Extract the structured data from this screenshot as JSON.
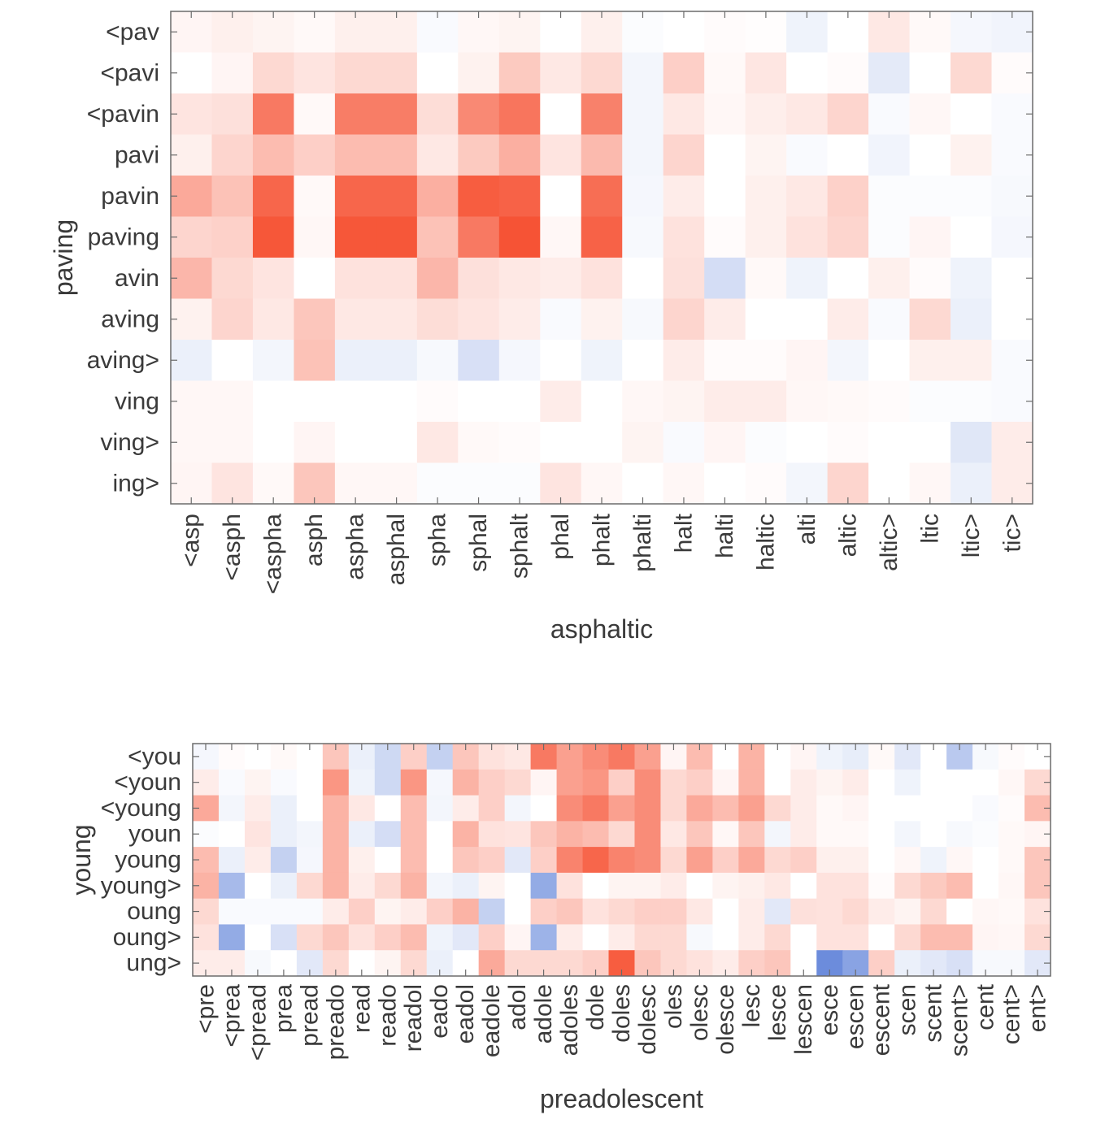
{
  "chart_data": [
    {
      "type": "heatmap",
      "xlabel": "asphaltic",
      "ylabel": "paving",
      "colormap": {
        "negative": "#3b66d0",
        "zero": "#ffffff",
        "positive": "#f5401e"
      },
      "value_range": [
        -1,
        1
      ],
      "x_categories": [
        "<asp",
        "<asph",
        "<aspha",
        "asph",
        "aspha",
        "asphal",
        "spha",
        "sphal",
        "sphalt",
        "phal",
        "phalt",
        "phalti",
        "halt",
        "halti",
        "haltic",
        "alti",
        "altic",
        "altic>",
        "ltic",
        "ltic>",
        "tic>"
      ],
      "y_categories": [
        "<pav",
        "<pavi",
        "<pavin",
        "pavi",
        "pavin",
        "paving",
        "avin",
        "aving",
        "aving>",
        "ving",
        "ving>",
        "ing>"
      ],
      "values": [
        [
          0.05,
          0.08,
          0.06,
          0.03,
          0.08,
          0.08,
          -0.03,
          0.04,
          0.06,
          0.0,
          0.08,
          -0.02,
          0.0,
          0.02,
          0.01,
          -0.08,
          0.0,
          0.12,
          0.03,
          -0.05,
          -0.07
        ],
        [
          0.0,
          0.05,
          0.2,
          0.14,
          0.2,
          0.2,
          0.0,
          0.07,
          0.28,
          0.12,
          0.2,
          -0.06,
          0.25,
          0.03,
          0.13,
          0.0,
          0.02,
          -0.14,
          0.0,
          0.2,
          0.02
        ],
        [
          0.14,
          0.16,
          0.7,
          0.03,
          0.68,
          0.68,
          0.18,
          0.62,
          0.72,
          0.0,
          0.66,
          -0.06,
          0.12,
          0.04,
          0.09,
          0.12,
          0.22,
          -0.03,
          0.04,
          0.0,
          -0.03
        ],
        [
          0.08,
          0.22,
          0.35,
          0.25,
          0.35,
          0.35,
          0.12,
          0.28,
          0.42,
          0.14,
          0.36,
          -0.06,
          0.22,
          0.0,
          0.06,
          -0.03,
          0.0,
          -0.07,
          0.0,
          0.07,
          -0.03
        ],
        [
          0.45,
          0.32,
          0.8,
          0.03,
          0.8,
          0.8,
          0.42,
          0.85,
          0.82,
          0.0,
          0.76,
          -0.05,
          0.1,
          0.0,
          0.08,
          0.12,
          0.24,
          -0.02,
          -0.02,
          -0.02,
          -0.04
        ],
        [
          0.22,
          0.24,
          0.88,
          0.04,
          0.88,
          0.88,
          0.32,
          0.7,
          0.9,
          0.04,
          0.82,
          -0.04,
          0.15,
          0.02,
          0.08,
          0.15,
          0.22,
          -0.02,
          0.05,
          0.0,
          -0.05
        ],
        [
          0.38,
          0.2,
          0.14,
          0.0,
          0.15,
          0.15,
          0.38,
          0.16,
          0.12,
          0.1,
          0.15,
          0.0,
          0.16,
          -0.22,
          0.03,
          -0.08,
          0.0,
          0.08,
          0.02,
          -0.08,
          0.0
        ],
        [
          0.07,
          0.22,
          0.12,
          0.3,
          0.12,
          0.12,
          0.18,
          0.14,
          0.1,
          -0.03,
          0.07,
          -0.04,
          0.22,
          0.1,
          0.0,
          0.0,
          0.1,
          -0.03,
          0.2,
          -0.1,
          0.0
        ],
        [
          -0.1,
          0.0,
          -0.06,
          0.32,
          -0.1,
          -0.1,
          -0.04,
          -0.2,
          -0.05,
          0.0,
          -0.08,
          0.0,
          0.1,
          0.02,
          0.02,
          0.05,
          -0.06,
          0.0,
          0.08,
          0.08,
          -0.03
        ],
        [
          0.04,
          0.04,
          0.0,
          0.0,
          0.0,
          0.0,
          0.02,
          0.0,
          0.0,
          0.1,
          0.0,
          0.04,
          0.06,
          0.1,
          0.1,
          0.04,
          0.03,
          0.02,
          -0.02,
          -0.02,
          -0.03
        ],
        [
          0.04,
          0.04,
          0.0,
          0.05,
          0.0,
          0.0,
          0.12,
          0.03,
          0.02,
          0.0,
          0.0,
          0.06,
          -0.03,
          0.05,
          -0.02,
          0.0,
          0.02,
          0.0,
          0.0,
          -0.16,
          0.1
        ],
        [
          0.05,
          0.14,
          0.03,
          0.3,
          0.04,
          0.04,
          -0.02,
          -0.02,
          -0.02,
          0.14,
          0.04,
          0.0,
          0.04,
          0.0,
          0.02,
          -0.06,
          0.22,
          0.0,
          0.04,
          -0.1,
          0.1
        ]
      ]
    },
    {
      "type": "heatmap",
      "xlabel": "preadolescent",
      "ylabel": "young",
      "colormap": {
        "negative": "#3b66d0",
        "zero": "#ffffff",
        "positive": "#f5401e"
      },
      "value_range": [
        -1,
        1
      ],
      "x_categories": [
        "<pre",
        "<prea",
        "<pread",
        "prea",
        "pread",
        "preado",
        "read",
        "reado",
        "readol",
        "eado",
        "eadol",
        "eadole",
        "adol",
        "adole",
        "adoles",
        "dole",
        "doles",
        "dolesc",
        "oles",
        "olesc",
        "olesce",
        "lesc",
        "lesce",
        "lescen",
        "esce",
        "escen",
        "escent",
        "scen",
        "scent",
        "scent>",
        "cent",
        "cent>",
        "ent>"
      ],
      "y_categories": [
        "<you",
        "<youn",
        "<young",
        "youn",
        "young",
        "young>",
        "oung",
        "oung>",
        "ung>"
      ],
      "values": [
        [
          -0.05,
          0.02,
          0.0,
          0.03,
          0.0,
          0.3,
          -0.1,
          -0.25,
          0.25,
          -0.3,
          0.3,
          0.15,
          0.12,
          0.7,
          0.5,
          0.6,
          0.7,
          0.5,
          0.05,
          0.35,
          0.0,
          0.4,
          0.0,
          0.05,
          -0.08,
          -0.12,
          0.03,
          -0.15,
          0.0,
          -0.35,
          -0.04,
          0.02,
          0.0
        ],
        [
          0.1,
          -0.03,
          0.06,
          -0.03,
          0.0,
          0.55,
          -0.08,
          -0.25,
          0.55,
          -0.05,
          0.4,
          0.25,
          0.2,
          0.05,
          0.5,
          0.55,
          0.25,
          0.6,
          0.2,
          0.25,
          0.05,
          0.4,
          0.0,
          0.1,
          0.06,
          0.1,
          0.0,
          -0.08,
          0.0,
          0.0,
          0.0,
          0.04,
          0.2
        ],
        [
          0.45,
          -0.06,
          0.1,
          -0.1,
          0.0,
          0.4,
          0.12,
          0.0,
          0.35,
          -0.06,
          0.1,
          0.25,
          -0.06,
          0.0,
          0.6,
          0.7,
          0.5,
          0.6,
          0.2,
          0.45,
          0.35,
          0.5,
          0.2,
          0.1,
          0.03,
          0.05,
          0.0,
          0.0,
          0.0,
          0.0,
          -0.03,
          0.02,
          0.35
        ],
        [
          -0.02,
          0.0,
          0.14,
          -0.1,
          -0.06,
          0.4,
          -0.1,
          -0.22,
          0.35,
          0.0,
          0.4,
          0.15,
          0.14,
          0.3,
          0.4,
          0.35,
          0.2,
          0.6,
          0.12,
          0.3,
          0.04,
          0.3,
          -0.06,
          0.1,
          0.03,
          0.03,
          0.0,
          -0.06,
          0.0,
          -0.04,
          -0.02,
          0.03,
          0.05
        ],
        [
          0.35,
          -0.1,
          0.1,
          -0.3,
          -0.05,
          0.4,
          0.08,
          0.0,
          0.35,
          0.0,
          0.3,
          0.25,
          -0.15,
          0.25,
          0.65,
          0.8,
          0.65,
          0.6,
          0.2,
          0.5,
          0.25,
          0.45,
          0.2,
          0.25,
          0.08,
          0.08,
          0.0,
          0.04,
          -0.08,
          0.04,
          0.0,
          0.03,
          0.3
        ],
        [
          0.4,
          -0.45,
          0.0,
          -0.1,
          0.2,
          0.4,
          0.1,
          0.2,
          0.4,
          -0.06,
          -0.1,
          0.06,
          0.0,
          -0.55,
          0.15,
          0.0,
          0.06,
          0.06,
          0.1,
          0.0,
          0.06,
          0.08,
          0.12,
          0.0,
          0.15,
          0.15,
          0.02,
          0.2,
          0.28,
          0.35,
          0.0,
          0.04,
          0.3
        ],
        [
          0.2,
          -0.03,
          -0.03,
          -0.03,
          -0.03,
          0.1,
          0.25,
          0.06,
          0.1,
          0.25,
          0.4,
          -0.3,
          0.0,
          0.25,
          0.3,
          0.15,
          0.2,
          0.25,
          0.25,
          0.12,
          0.0,
          0.1,
          -0.15,
          0.16,
          0.15,
          0.2,
          0.1,
          0.06,
          0.2,
          0.0,
          0.04,
          0.03,
          0.15
        ],
        [
          0.15,
          -0.55,
          0.0,
          -0.2,
          0.2,
          0.3,
          0.15,
          0.25,
          0.35,
          -0.08,
          -0.15,
          0.25,
          0.05,
          -0.5,
          0.1,
          0.0,
          0.1,
          0.2,
          0.2,
          -0.04,
          0.0,
          0.1,
          0.2,
          0.0,
          0.15,
          0.15,
          0.0,
          0.2,
          0.35,
          0.35,
          0.05,
          0.04,
          0.2
        ],
        [
          0.1,
          0.1,
          -0.04,
          0.0,
          -0.15,
          0.2,
          0.0,
          0.06,
          0.2,
          -0.1,
          0.0,
          0.45,
          0.2,
          0.2,
          0.2,
          0.25,
          0.85,
          0.3,
          0.2,
          0.15,
          0.1,
          0.25,
          0.3,
          0.0,
          -0.75,
          -0.6,
          0.25,
          -0.1,
          -0.15,
          -0.2,
          -0.04,
          -0.04,
          -0.15
        ]
      ]
    }
  ]
}
